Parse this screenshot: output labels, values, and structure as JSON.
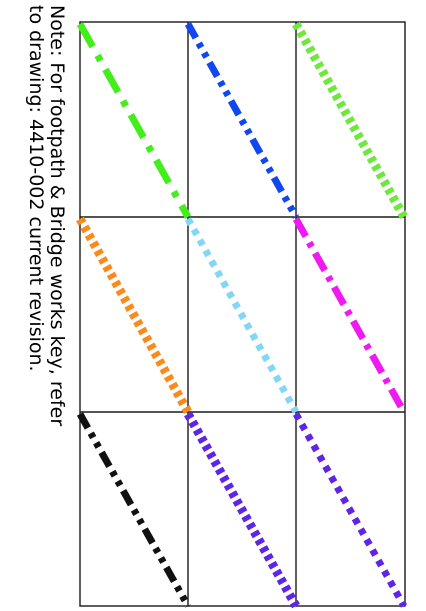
{
  "note": {
    "line1": "Note:  For footpath & Bridge works key, refer",
    "line2": "to drawing: 4410-002 current revision."
  },
  "grid": {
    "line_color": "#1a1a1a"
  },
  "key_lines": [
    {
      "name": "green-dash-dot-line",
      "color": "#44ee1c",
      "style": "long-dash-dot"
    },
    {
      "name": "blue-dash-double-dot-line",
      "color": "#1147f0",
      "style": "dash-double-dot"
    },
    {
      "name": "lightgreen-hatched-line",
      "color": "#6ee83a",
      "style": "hatched"
    },
    {
      "name": "orange-hatched-line",
      "color": "#fb8a1b",
      "style": "hatched"
    },
    {
      "name": "lightblue-dotted-line",
      "color": "#84d6f7",
      "style": "dotted"
    },
    {
      "name": "magenta-dash-dot-line",
      "color": "#ef19f2",
      "style": "dash-dot"
    },
    {
      "name": "black-dash-double-dot-line",
      "color": "#111111",
      "style": "dash-double-dot"
    },
    {
      "name": "purple-hatched-line",
      "color": "#5e24e8",
      "style": "hatched"
    },
    {
      "name": "purple-dotted-line",
      "color": "#5e24e8",
      "style": "dotted"
    }
  ]
}
